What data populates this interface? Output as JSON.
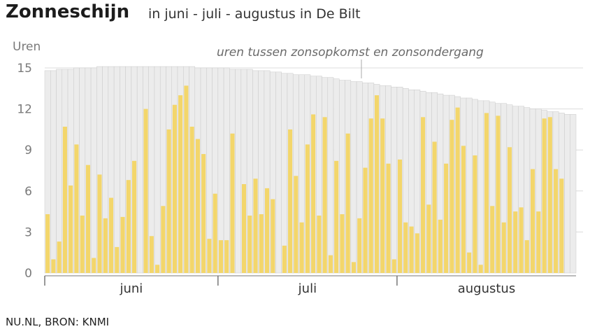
{
  "header": {
    "title": "Zonneschijn",
    "subtitle": "in juni - juli - augustus in De Bilt"
  },
  "footer": {
    "source": "NU.NL, BRON: KNMI"
  },
  "colors": {
    "bar": "#f3d66b",
    "daylight": "#ececec",
    "daylight_stroke": "#c9c9c9",
    "grid": "#dcdcdc",
    "axis": "#777777"
  },
  "chart_data": {
    "type": "bar",
    "ylabel": "Uren",
    "annotation": "uren tussen zonsopkomst en zonsondergang",
    "ylim": [
      0,
      15
    ],
    "yticks": [
      "0",
      "3",
      "6",
      "9",
      "12",
      "15"
    ],
    "months": [
      "juni",
      "juli",
      "augustus"
    ],
    "days_per_month": [
      30,
      31,
      31
    ],
    "grid": true,
    "series": [
      {
        "values": [
          4.3,
          1.0,
          2.3,
          10.7,
          6.4,
          9.4,
          4.2,
          7.9,
          1.1,
          7.2,
          4.0,
          5.5,
          1.9,
          4.1,
          6.8,
          8.2,
          0.0,
          12.0,
          2.7,
          0.6,
          4.9,
          10.5,
          12.3,
          13.0,
          13.7,
          10.7,
          9.8,
          8.7,
          2.5,
          5.8,
          2.4,
          2.4,
          10.2,
          0.0,
          6.5,
          4.2,
          6.9,
          4.3,
          6.2,
          5.4,
          0.0,
          2.0,
          10.5,
          7.1,
          3.7,
          9.4,
          11.6,
          4.2,
          11.4,
          1.3,
          8.2,
          4.3,
          10.2,
          0.8,
          4.0,
          7.7,
          11.3,
          13.0,
          11.3,
          8.0,
          1.0,
          8.3,
          3.7,
          3.4,
          2.9,
          11.4,
          5.0,
          9.6,
          3.9,
          8.0,
          11.2,
          12.1,
          9.3,
          1.5,
          8.6,
          0.6,
          11.7,
          4.9,
          11.5,
          3.7,
          9.2,
          4.5,
          4.8,
          2.4,
          7.6,
          4.5,
          11.3,
          11.4,
          7.6,
          6.9,
          0.0,
          0.0
        ]
      },
      {
        "values": [
          14.8,
          14.8,
          14.9,
          14.9,
          14.9,
          15.0,
          15.0,
          15.0,
          15.0,
          15.1,
          15.1,
          15.1,
          15.1,
          15.1,
          15.1,
          15.1,
          15.1,
          15.1,
          15.1,
          15.1,
          15.1,
          15.1,
          15.1,
          15.1,
          15.1,
          15.1,
          15.0,
          15.0,
          15.0,
          15.0,
          15.0,
          15.0,
          14.9,
          14.9,
          14.9,
          14.9,
          14.8,
          14.8,
          14.8,
          14.7,
          14.7,
          14.6,
          14.6,
          14.5,
          14.5,
          14.5,
          14.4,
          14.4,
          14.3,
          14.3,
          14.2,
          14.1,
          14.1,
          14.0,
          14.0,
          13.9,
          13.9,
          13.8,
          13.7,
          13.7,
          13.6,
          13.6,
          13.5,
          13.4,
          13.4,
          13.3,
          13.2,
          13.2,
          13.1,
          13.0,
          13.0,
          12.9,
          12.8,
          12.8,
          12.7,
          12.6,
          12.6,
          12.5,
          12.4,
          12.4,
          12.3,
          12.2,
          12.2,
          12.1,
          12.0,
          12.0,
          11.9,
          11.8,
          11.8,
          11.7,
          11.6,
          11.6
        ]
      }
    ]
  }
}
